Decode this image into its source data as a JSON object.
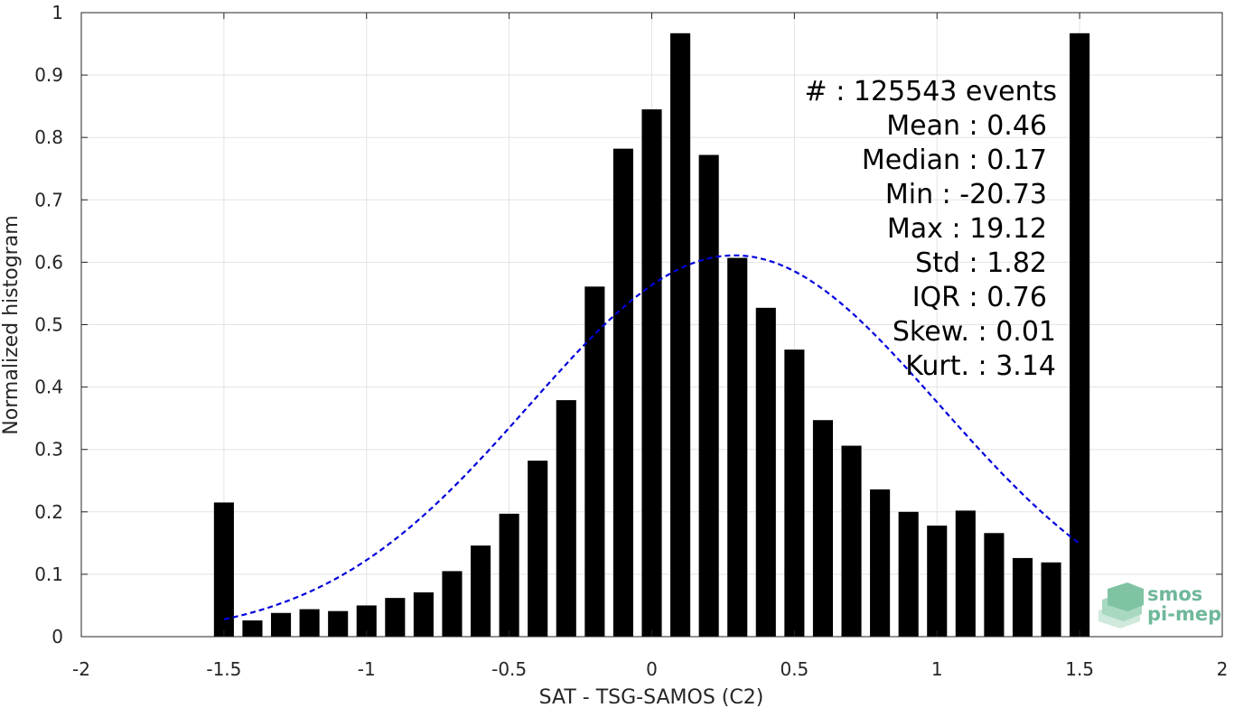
{
  "chart_data": {
    "type": "bar",
    "xlabel": "SAT - TSG-SAMOS (C2)",
    "ylabel": "Normalized histogram",
    "xlim": [
      -2,
      2
    ],
    "ylim": [
      0,
      1
    ],
    "x_ticks": [
      -2,
      -1.5,
      -1,
      -0.5,
      0,
      0.5,
      1,
      1.5,
      2
    ],
    "x_tick_labels": [
      "-2",
      "-1.5",
      "-1",
      "-0.5",
      "0",
      "0.5",
      "1",
      "1.5",
      "2"
    ],
    "y_ticks": [
      0,
      0.1,
      0.2,
      0.3,
      0.4,
      0.5,
      0.6,
      0.7,
      0.8,
      0.9,
      1
    ],
    "y_tick_labels": [
      "0",
      "0.1",
      "0.2",
      "0.3",
      "0.4",
      "0.5",
      "0.6",
      "0.7",
      "0.8",
      "0.9",
      "1"
    ],
    "grid": true,
    "bar_color": "#000000",
    "bars": {
      "x": [
        -1.5,
        -1.4,
        -1.3,
        -1.2,
        -1.1,
        -1.0,
        -0.9,
        -0.8,
        -0.7,
        -0.6,
        -0.5,
        -0.4,
        -0.3,
        -0.2,
        -0.1,
        0.0,
        0.1,
        0.2,
        0.3,
        0.4,
        0.5,
        0.6,
        0.7,
        0.8,
        0.9,
        1.0,
        1.1,
        1.2,
        1.3,
        1.4,
        1.5
      ],
      "values": [
        0.215,
        0.026,
        0.038,
        0.044,
        0.041,
        0.05,
        0.062,
        0.071,
        0.105,
        0.146,
        0.197,
        0.282,
        0.379,
        0.561,
        0.782,
        0.845,
        0.967,
        0.772,
        0.607,
        0.527,
        0.46,
        0.347,
        0.306,
        0.236,
        0.2,
        0.178,
        0.202,
        0.166,
        0.126,
        0.119,
        0.967
      ]
    },
    "fit_curve": {
      "type": "normal",
      "color": "#0000dd",
      "style": "dashed",
      "x_range": [
        -1.5,
        1.5
      ],
      "peak": 0.611,
      "mean": 0.29,
      "sigma": 0.72
    },
    "annotations": [
      "#  : 125543 events",
      "Mean : 0.46",
      "Median : 0.17",
      "Min : -20.73",
      "Max : 19.12",
      "Std : 1.82",
      "IQR : 0.76",
      "Skew. : 0.01",
      "Kurt. : 3.14"
    ]
  },
  "logo": {
    "line1": "smos",
    "line2": "pi-mep",
    "color": "#6fb89a"
  }
}
